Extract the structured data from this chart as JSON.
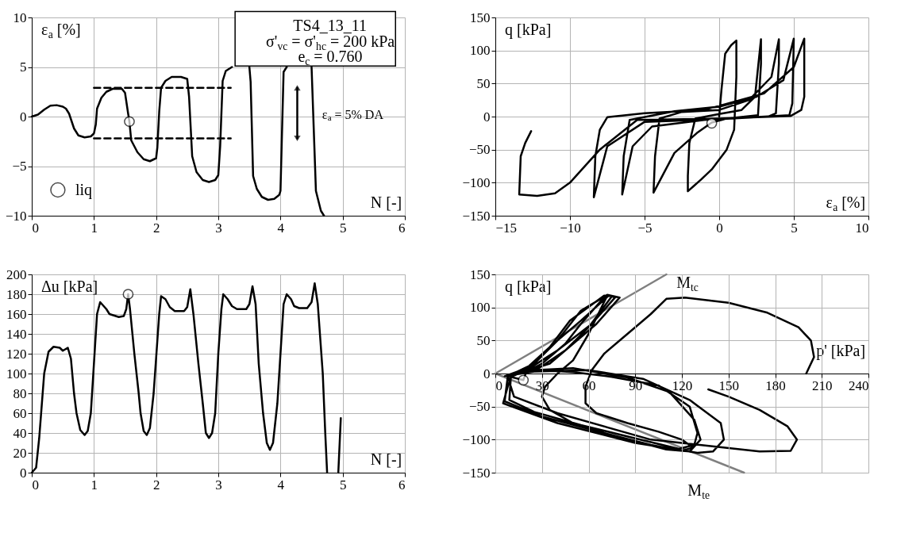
{
  "chart_data": [
    {
      "type": "line",
      "xlabel": "N [-]",
      "ylabel": "ε$_{a}$ [%]",
      "xlim": [
        0,
        6
      ],
      "ylim": [
        -10,
        10
      ],
      "xticks": [
        0,
        1,
        2,
        3,
        4,
        5,
        6
      ],
      "yticks": [
        -10,
        -5,
        0,
        5,
        10
      ],
      "grid": true,
      "legend": "bottom left",
      "annotations": [
        "TS4_13_11",
        "σ'$_{vc}$ = σ'$_{hc}$ = 200 kPa",
        "e$_{c}$ = 0.760",
        "ε$_{a}$ = 5% DA"
      ],
      "series": [
        {
          "color": "#000000",
          "marker": "none",
          "x": [
            0,
            0.1,
            0.2,
            0.3,
            0.4,
            0.5,
            0.55,
            0.6,
            0.68,
            0.75,
            0.85,
            0.95,
            1.0,
            1.03,
            1.05,
            1.12,
            1.2,
            1.3,
            1.45,
            1.5,
            1.55,
            1.57,
            1.6,
            1.7,
            1.8,
            1.9,
            2.0,
            2.02,
            2.05,
            2.08,
            2.15,
            2.25,
            2.4,
            2.5,
            2.53,
            2.58,
            2.65,
            2.75,
            2.85,
            2.95,
            3.0,
            3.03,
            3.07,
            3.12,
            3.22,
            3.3,
            3.5,
            3.52,
            3.56,
            3.62,
            3.7,
            3.8,
            3.9,
            3.98,
            4.0,
            4.05,
            4.1,
            4.3,
            4.5,
            4.57,
            4.65,
            4.7
          ],
          "values": [
            0,
            0.2,
            0.7,
            1.1,
            1.15,
            1.0,
            0.8,
            0.3,
            -1.2,
            -1.9,
            -2.1,
            -2.0,
            -1.7,
            -0.8,
            0.8,
            1.9,
            2.5,
            2.8,
            2.8,
            2.4,
            0.3,
            -0.5,
            -2.4,
            -3.6,
            -4.3,
            -4.5,
            -4.2,
            -3.1,
            0.5,
            2.9,
            3.6,
            4.0,
            4.0,
            3.8,
            2.0,
            -4.0,
            -5.6,
            -6.4,
            -6.6,
            -6.4,
            -5.9,
            -3.0,
            3.6,
            4.6,
            5.0,
            null,
            5.0,
            3.5,
            -6.0,
            -7.3,
            -8.1,
            -8.4,
            -8.3,
            -7.9,
            -7.5,
            4.5,
            5.0,
            null,
            5.0,
            -7.5,
            -9.5,
            -10
          ]
        },
        {
          "color": "#000000",
          "line_style": "dashed",
          "marker": "none",
          "x": [
            1.0,
            3.2
          ],
          "values": [
            2.9,
            2.9
          ]
        },
        {
          "color": "#000000",
          "line_style": "dashed",
          "marker": "none",
          "x": [
            1.0,
            3.2
          ],
          "values": [
            -2.2,
            -2.2
          ]
        },
        {
          "color": "#000000",
          "marker": "triangle",
          "x": [
            4.27,
            4.27
          ],
          "values": [
            2.9,
            -2.2
          ]
        },
        {
          "type": "scatter",
          "name": "liq",
          "color": "#ffffff",
          "marker": "circle",
          "x": [
            1.57
          ],
          "values": [
            -0.5
          ]
        }
      ]
    },
    {
      "type": "line",
      "xlabel": "ε$_{a}$ [%]",
      "ylabel": "q [kPa]",
      "xlim": [
        -15,
        10
      ],
      "ylim": [
        -150,
        150
      ],
      "xticks": [
        -15,
        -10,
        -5,
        0,
        5,
        10
      ],
      "yticks": [
        -150,
        -100,
        -50,
        0,
        50,
        100,
        150
      ],
      "grid": true,
      "series": [
        {
          "color": "#000000",
          "marker": "none",
          "x": [
            0,
            0.15,
            0.4,
            0.8,
            1.15,
            1.15,
            1.0,
            0.5,
            -0.5,
            -1.2,
            -1.7,
            -2.1,
            -2.1,
            -2.0,
            -1.6,
            0,
            1.5,
            2.4,
            2.8,
            2.8,
            2.6,
            0.5,
            -0.5,
            -1.5,
            -3,
            -4.4,
            -4.3,
            -4.0,
            -2.5,
            0,
            2,
            3.5,
            4.0,
            4.0,
            3.8,
            3.3,
            -1,
            -4.5,
            -5.8,
            -6.5,
            -6.4,
            -6.0,
            -3,
            0,
            2.5,
            4.3,
            5.0,
            4.9,
            4.7,
            0,
            -5,
            -7.5,
            -8.4,
            -8.3,
            -8.0,
            -7.5,
            -5,
            -1,
            3,
            5.0,
            5.7,
            5.7,
            5.5,
            4.8,
            0,
            -5.5,
            -8,
            -10,
            -11,
            -12.2,
            -13.4,
            -13.3,
            -13.0,
            -12.6
          ],
          "values": [
            0,
            40,
            95,
            108,
            115,
            60,
            -20,
            -50,
            -80,
            -95,
            -105,
            -113,
            -90,
            -40,
            -3,
            4,
            10,
            30,
            117,
            80,
            2,
            -3,
            -9,
            -25,
            -55,
            -115,
            -60,
            -3,
            7,
            10,
            25,
            60,
            117,
            80,
            5,
            0,
            -5,
            -15,
            -45,
            -118,
            -60,
            -5,
            8,
            15,
            30,
            55,
            118,
            20,
            2,
            -4,
            -8,
            -45,
            -122,
            -60,
            -20,
            -1,
            5,
            10,
            35,
            75,
            118,
            30,
            10,
            1,
            -3,
            -5,
            -50,
            -100,
            -116,
            -120,
            -118,
            -60,
            -40,
            -22
          ]
        },
        {
          "type": "scatter",
          "color": "#ffffff",
          "marker": "circle",
          "x": [
            -0.5
          ],
          "values": [
            -10
          ]
        }
      ]
    },
    {
      "type": "line",
      "xlabel": "N [-]",
      "ylabel": "Δu [kPa]",
      "xlim": [
        0,
        6
      ],
      "ylim": [
        0,
        200
      ],
      "xticks": [
        0,
        1,
        2,
        3,
        4,
        5,
        6
      ],
      "yticks": [
        0,
        20,
        40,
        60,
        80,
        100,
        120,
        140,
        160,
        180,
        200
      ],
      "grid": true,
      "series": [
        {
          "color": "#000000",
          "marker": "none",
          "x": [
            0,
            0.07,
            0.12,
            0.2,
            0.27,
            0.35,
            0.45,
            0.5,
            0.58,
            0.63,
            0.68,
            0.72,
            0.78,
            0.85,
            0.9,
            0.95,
            1.0,
            1.05,
            1.1,
            1.2,
            1.25,
            1.4,
            1.48,
            1.52,
            1.55,
            1.58,
            1.65,
            1.72,
            1.75,
            1.8,
            1.85,
            1.9,
            1.96,
            2.05,
            2.08,
            2.15,
            2.22,
            2.3,
            2.45,
            2.5,
            2.55,
            2.6,
            2.68,
            2.75,
            2.8,
            2.85,
            2.9,
            2.95,
            3.0,
            3.05,
            3.08,
            3.15,
            3.22,
            3.3,
            3.45,
            3.5,
            3.55,
            3.6,
            3.65,
            3.72,
            3.78,
            3.83,
            3.88,
            3.95,
            4.0,
            4.05,
            4.1,
            4.17,
            4.22,
            4.3,
            4.43,
            4.5,
            4.55,
            4.6,
            4.68,
            4.72,
            4.75,
            4.85,
            4.93,
            4.97
          ],
          "values": [
            0,
            5,
            35,
            100,
            122,
            127,
            126,
            123,
            126,
            115,
            80,
            60,
            43,
            38,
            42,
            60,
            110,
            160,
            172,
            165,
            160,
            157,
            158,
            165,
            180,
            165,
            120,
            80,
            60,
            42,
            38,
            45,
            80,
            160,
            178,
            175,
            167,
            163,
            163,
            167,
            185,
            160,
            110,
            70,
            40,
            35,
            40,
            60,
            120,
            165,
            180,
            175,
            168,
            165,
            165,
            170,
            188,
            170,
            110,
            60,
            30,
            23,
            30,
            70,
            120,
            170,
            180,
            175,
            168,
            166,
            166,
            172,
            191,
            170,
            100,
            40,
            0,
            null,
            0,
            55
          ]
        },
        {
          "type": "scatter",
          "color": "#ffffff",
          "marker": "circle",
          "x": [
            1.55
          ],
          "values": [
            180
          ]
        }
      ]
    },
    {
      "type": "line",
      "xlabel": "p' [kPa]",
      "ylabel": "q [kPa]",
      "xlim": [
        0,
        240
      ],
      "ylim": [
        -150,
        150
      ],
      "xticks": [
        0,
        30,
        60,
        90,
        120,
        150,
        180,
        210,
        240
      ],
      "yticks": [
        -150,
        -100,
        -50,
        0,
        50,
        100,
        150
      ],
      "grid": true,
      "annotations": [
        "M$_{tc}$",
        "M$_{te}$"
      ],
      "series": [
        {
          "color": "#808080",
          "marker": "none",
          "x": [
            0,
            110
          ],
          "values": [
            0,
            150
          ]
        },
        {
          "color": "#808080",
          "marker": "none",
          "x": [
            0,
            160
          ],
          "values": [
            0,
            -150
          ]
        },
        {
          "color": "#000000",
          "marker": "none",
          "x": [
            200,
            205,
            203,
            195,
            175,
            150,
            122,
            110,
            100,
            85,
            70,
            62,
            58,
            58,
            65,
            85,
            105,
            120,
            127,
            120,
            100,
            70,
            50,
            35,
            30,
            32,
            40,
            50,
            60,
            72,
            68,
            55,
            45,
            30,
            20,
            18,
            10,
            9,
            25,
            55,
            90,
            118,
            128,
            130,
            125,
            105,
            75,
            50,
            30,
            15,
            10,
            22,
            35,
            48,
            70,
            75,
            60,
            45,
            28,
            8,
            6,
            30,
            70,
            110,
            125,
            132,
            128,
            112,
            85,
            50,
            25,
            8,
            25,
            40,
            55,
            72,
            80,
            65,
            50,
            35,
            10,
            5,
            40,
            90,
            130,
            140,
            147,
            145,
            125,
            95,
            60,
            25,
            6,
            20,
            35,
            55,
            73,
            77,
            62,
            40,
            20,
            8,
            12,
            40,
            100,
            170,
            190,
            194,
            188,
            170,
            150,
            137
          ],
          "values": [
            0,
            25,
            50,
            70,
            92,
            107,
            115,
            113,
            90,
            60,
            30,
            5,
            -20,
            -45,
            -60,
            -75,
            -88,
            -100,
            -112,
            -117,
            -108,
            -90,
            -75,
            -55,
            -35,
            -20,
            0,
            20,
            60,
            118,
            110,
            75,
            45,
            15,
            3,
            -10,
            -5,
            -40,
            -58,
            -78,
            -98,
            -114,
            -108,
            -90,
            -50,
            -18,
            -5,
            2,
            5,
            0,
            -5,
            10,
            40,
            80,
            118,
            117,
            70,
            35,
            8,
            -4,
            -42,
            -65,
            -90,
            -115,
            -118,
            -100,
            -70,
            -28,
            -6,
            8,
            5,
            -4,
            15,
            50,
            95,
            119,
            115,
            75,
            45,
            15,
            -3,
            -45,
            -75,
            -105,
            -120,
            -118,
            -100,
            -75,
            -40,
            -8,
            5,
            3,
            -4,
            8,
            40,
            80,
            118,
            115,
            75,
            35,
            5,
            -5,
            -35,
            -60,
            -100,
            -118,
            -117,
            -100,
            -80,
            -55,
            -35,
            -24
          ]
        },
        {
          "type": "scatter",
          "color": "#ffffff",
          "marker": "circle",
          "x": [
            18
          ],
          "values": [
            -10
          ]
        }
      ]
    }
  ]
}
